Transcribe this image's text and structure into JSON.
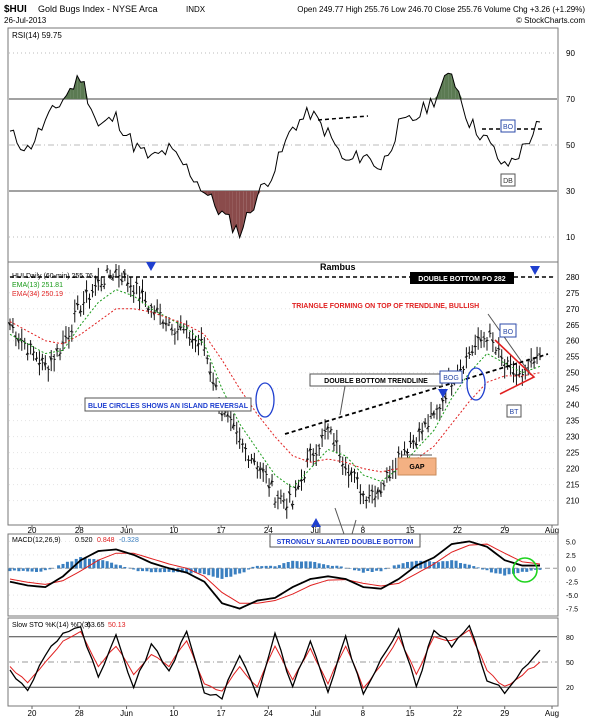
{
  "header": {
    "symbol": "$HUI",
    "name": "Gold Bugs Index - NYSE Arca",
    "badge": "INDX",
    "date": "26-Jul-2013",
    "quote": "Open 249.77  High 255.76  Low 246.70  Close 255.76  Volume  Chg +3.26 (+1.29%)",
    "brand": "© StockCharts.com"
  },
  "rsi": {
    "label": "RSI(14) 59.75",
    "ticks": [
      "90",
      "70",
      "50",
      "30",
      "10"
    ],
    "annotations": {
      "bo": "BO",
      "db": "DB"
    }
  },
  "price": {
    "title": "Rambus",
    "legend": {
      "main": "HUI Daily (60-min) 255.76",
      "ema13": "EMA(13) 251.81",
      "ema34": "EMA(34) 250.19"
    },
    "ticks": [
      "280",
      "275",
      "270",
      "265",
      "260",
      "255",
      "250",
      "245",
      "240",
      "235",
      "230",
      "225",
      "220",
      "215",
      "210"
    ],
    "annotations": {
      "dbpo": "DOUBLE BOTTOM PO 282",
      "triangle": "TRIANGLE FORMING ON TOP OF TRENDLINE, BULLISH",
      "bo": "BO",
      "dbt": "DOUBLE BOTTOM TRENDLINE",
      "bog": "BOG",
      "blue": "BLUE CIRCLES SHOWS AN ISLAND REVERSAL",
      "bt": "BT",
      "gap": "GAP",
      "ssdb": "STRONGLY SLANTED DOUBLE BOTTOM"
    },
    "xaxis": [
      "20",
      "28",
      "Jun",
      "10",
      "17",
      "24",
      "Jul",
      "8",
      "15",
      "22",
      "29",
      "Aug"
    ]
  },
  "macd": {
    "label": "MACD(12,26,9)",
    "v1": "0.520",
    "v2": "0.848",
    "v3": "-0.328",
    "ticks": [
      "5.0",
      "2.5",
      "0.0",
      "-2.5",
      "-5.0",
      "-7.5"
    ]
  },
  "sto": {
    "label": "Slow STO %K(14) %D(3)",
    "v1": "63.65",
    "v2": "50.13",
    "ticks": [
      "80",
      "50",
      "20"
    ],
    "xaxis": [
      "20",
      "28",
      "Jun",
      "10",
      "17",
      "24",
      "Jul",
      "8",
      "15",
      "22",
      "29",
      "Aug"
    ]
  },
  "colors": {
    "red": "#e02020",
    "green": "#1a9a1a",
    "blue": "#1f3fcf",
    "rsiFill": "#5b7a52",
    "rsiLow": "#8a4b4b",
    "macdHist": "#3a7fc0",
    "gap": "#f4b183"
  },
  "chart_data": [
    {
      "type": "line",
      "title": "RSI(14) 59.75",
      "ylim": [
        0,
        100
      ],
      "x_ticks": [
        "20",
        "28",
        "Jun",
        "10",
        "17",
        "24",
        "Jul",
        "8",
        "15",
        "22",
        "29",
        "Aug"
      ],
      "series": [
        {
          "name": "RSI(14)",
          "values": [
            55,
            48,
            60,
            70,
            80,
            58,
            62,
            50,
            44,
            48,
            40,
            30,
            20,
            12,
            28,
            40,
            58,
            64,
            55,
            42,
            46,
            40,
            58,
            62,
            70,
            82,
            60,
            52,
            40,
            48,
            60
          ]
        }
      ]
    },
    {
      "type": "line",
      "title": "Rambus",
      "ylim": [
        203,
        284
      ],
      "x_ticks": [
        "20",
        "28",
        "Jun",
        "10",
        "17",
        "24",
        "Jul",
        "8",
        "15",
        "22",
        "29",
        "Aug"
      ],
      "series": [
        {
          "name": "HUI Daily (60-min)",
          "values": [
            265,
            258,
            252,
            259,
            271,
            278,
            282,
            277,
            270,
            266,
            262,
            258,
            238,
            228,
            222,
            212,
            209,
            224,
            232,
            222,
            212,
            214,
            224,
            230,
            236,
            248,
            256,
            262,
            252,
            248,
            255
          ]
        },
        {
          "name": "EMA(13)",
          "values": [
            262,
            259,
            256,
            257,
            265,
            272,
            276,
            274,
            270,
            267,
            264,
            259,
            245,
            234,
            226,
            218,
            214,
            220,
            226,
            224,
            218,
            216,
            220,
            226,
            232,
            242,
            250,
            256,
            253,
            250,
            252
          ]
        },
        {
          "name": "EMA(34)",
          "values": [
            266,
            263,
            260,
            259,
            262,
            266,
            270,
            270,
            269,
            267,
            265,
            262,
            254,
            245,
            237,
            230,
            224,
            222,
            223,
            222,
            220,
            219,
            220,
            223,
            227,
            234,
            241,
            247,
            249,
            249,
            250
          ]
        }
      ]
    },
    {
      "type": "line",
      "title": "MACD(12,26,9)",
      "ylim": [
        -8.5,
        6
      ],
      "x_ticks": [
        "20",
        "28",
        "Jun",
        "10",
        "17",
        "24",
        "Jul",
        "8",
        "15",
        "22",
        "29",
        "Aug"
      ],
      "series": [
        {
          "name": "MACD",
          "values": [
            -2.5,
            -3.2,
            -3.5,
            -1.5,
            1.5,
            3.2,
            3.5,
            2.5,
            1.0,
            0.0,
            -0.8,
            -2.5,
            -6.5,
            -7.5,
            -6.0,
            -5.5,
            -3.5,
            -2.0,
            -1.5,
            -2.0,
            -3.5,
            -3.8,
            -2.0,
            0.5,
            2.0,
            4.5,
            5.0,
            4.0,
            1.5,
            0.5,
            0.5
          ]
        },
        {
          "name": "Signal",
          "values": [
            -2.0,
            -2.6,
            -3.0,
            -2.3,
            -0.5,
            1.5,
            2.8,
            2.8,
            1.8,
            0.8,
            0.0,
            -1.5,
            -4.5,
            -6.5,
            -6.5,
            -6.0,
            -4.8,
            -3.2,
            -2.2,
            -2.1,
            -2.8,
            -3.3,
            -2.8,
            -1.0,
            0.8,
            3.0,
            4.3,
            4.5,
            2.8,
            1.2,
            0.8
          ]
        },
        {
          "name": "Histogram",
          "values": [
            -0.5,
            -0.6,
            -0.5,
            0.8,
            2.0,
            1.7,
            0.7,
            -0.3,
            -0.8,
            -0.8,
            -0.8,
            -1.0,
            -2.0,
            -1.0,
            0.5,
            0.5,
            1.3,
            1.2,
            0.7,
            0.1,
            -0.7,
            -0.5,
            0.8,
            1.5,
            1.2,
            1.5,
            0.7,
            -0.5,
            -1.3,
            -0.7,
            -0.3
          ]
        }
      ]
    },
    {
      "type": "line",
      "title": "Slow STO %K(14) %D(3)",
      "ylim": [
        0,
        100
      ],
      "x_ticks": [
        "20",
        "28",
        "Jun",
        "10",
        "17",
        "24",
        "Jul",
        "8",
        "15",
        "22",
        "29",
        "Aug"
      ],
      "series": [
        {
          "name": "%K",
          "values": [
            40,
            15,
            60,
            85,
            90,
            30,
            80,
            20,
            70,
            40,
            85,
            15,
            8,
            60,
            10,
            85,
            20,
            75,
            15,
            80,
            10,
            55,
            90,
            20,
            88,
            70,
            95,
            30,
            15,
            40,
            64
          ]
        },
        {
          "name": "%D",
          "values": [
            45,
            25,
            50,
            75,
            85,
            45,
            70,
            35,
            60,
            45,
            75,
            25,
            15,
            45,
            20,
            70,
            30,
            65,
            25,
            70,
            20,
            45,
            80,
            35,
            80,
            75,
            88,
            40,
            20,
            35,
            50
          ]
        }
      ]
    }
  ]
}
